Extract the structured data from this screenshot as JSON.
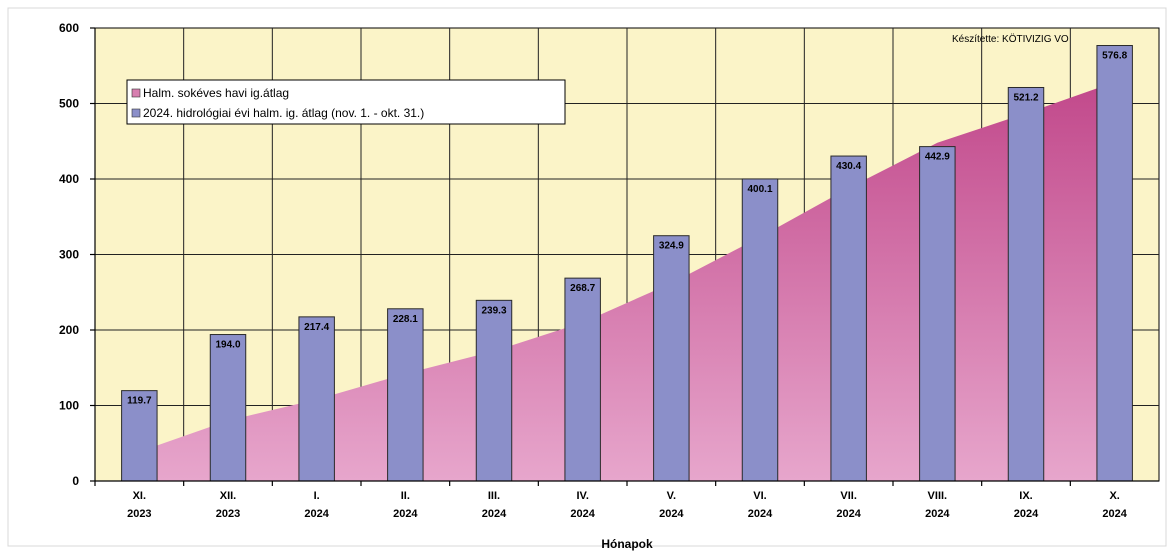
{
  "chart_data": {
    "type": "bar",
    "categories": [
      [
        "XI.",
        "2023"
      ],
      [
        "XII.",
        "2023"
      ],
      [
        "I.",
        "2024"
      ],
      [
        "II.",
        "2024"
      ],
      [
        "III.",
        "2024"
      ],
      [
        "IV.",
        "2024"
      ],
      [
        "V.",
        "2024"
      ],
      [
        "VI.",
        "2024"
      ],
      [
        "VII.",
        "2024"
      ],
      [
        "VIII.",
        "2024"
      ],
      [
        "IX.",
        "2024"
      ],
      [
        "X.",
        "2024"
      ]
    ],
    "series": [
      {
        "name": "Halm. sokéves havi ig.átlag",
        "kind": "area",
        "color": "#d77fb0",
        "values": [
          47,
          80,
          108,
          142,
          172,
          210,
          262,
          323,
          388,
          448,
          487,
          520
        ]
      },
      {
        "name": "2024. hidrológiai évi halm. ig. átlag (nov. 1. - okt. 31.)",
        "kind": "bar",
        "color": "#8b8fc9",
        "values": [
          119.7,
          194.0,
          217.4,
          228.1,
          239.3,
          268.7,
          324.9,
          400.1,
          430.4,
          442.9,
          521.2,
          576.8
        ],
        "labels": [
          "119.7",
          "194.0",
          "217.4",
          "228.1",
          "239.3",
          "268.7",
          "324.9",
          "400.1",
          "430.4",
          "442.9",
          "521.2",
          "576.8"
        ]
      }
    ],
    "title": "",
    "xlabel": "Hónapok",
    "ylabel": "",
    "ylim": [
      0,
      600
    ],
    "yticks": [
      0,
      100,
      200,
      300,
      400,
      500,
      600
    ],
    "grid": true,
    "legend": "top-left",
    "annotation": "Készítette: KÖTIVIZIG VO"
  }
}
